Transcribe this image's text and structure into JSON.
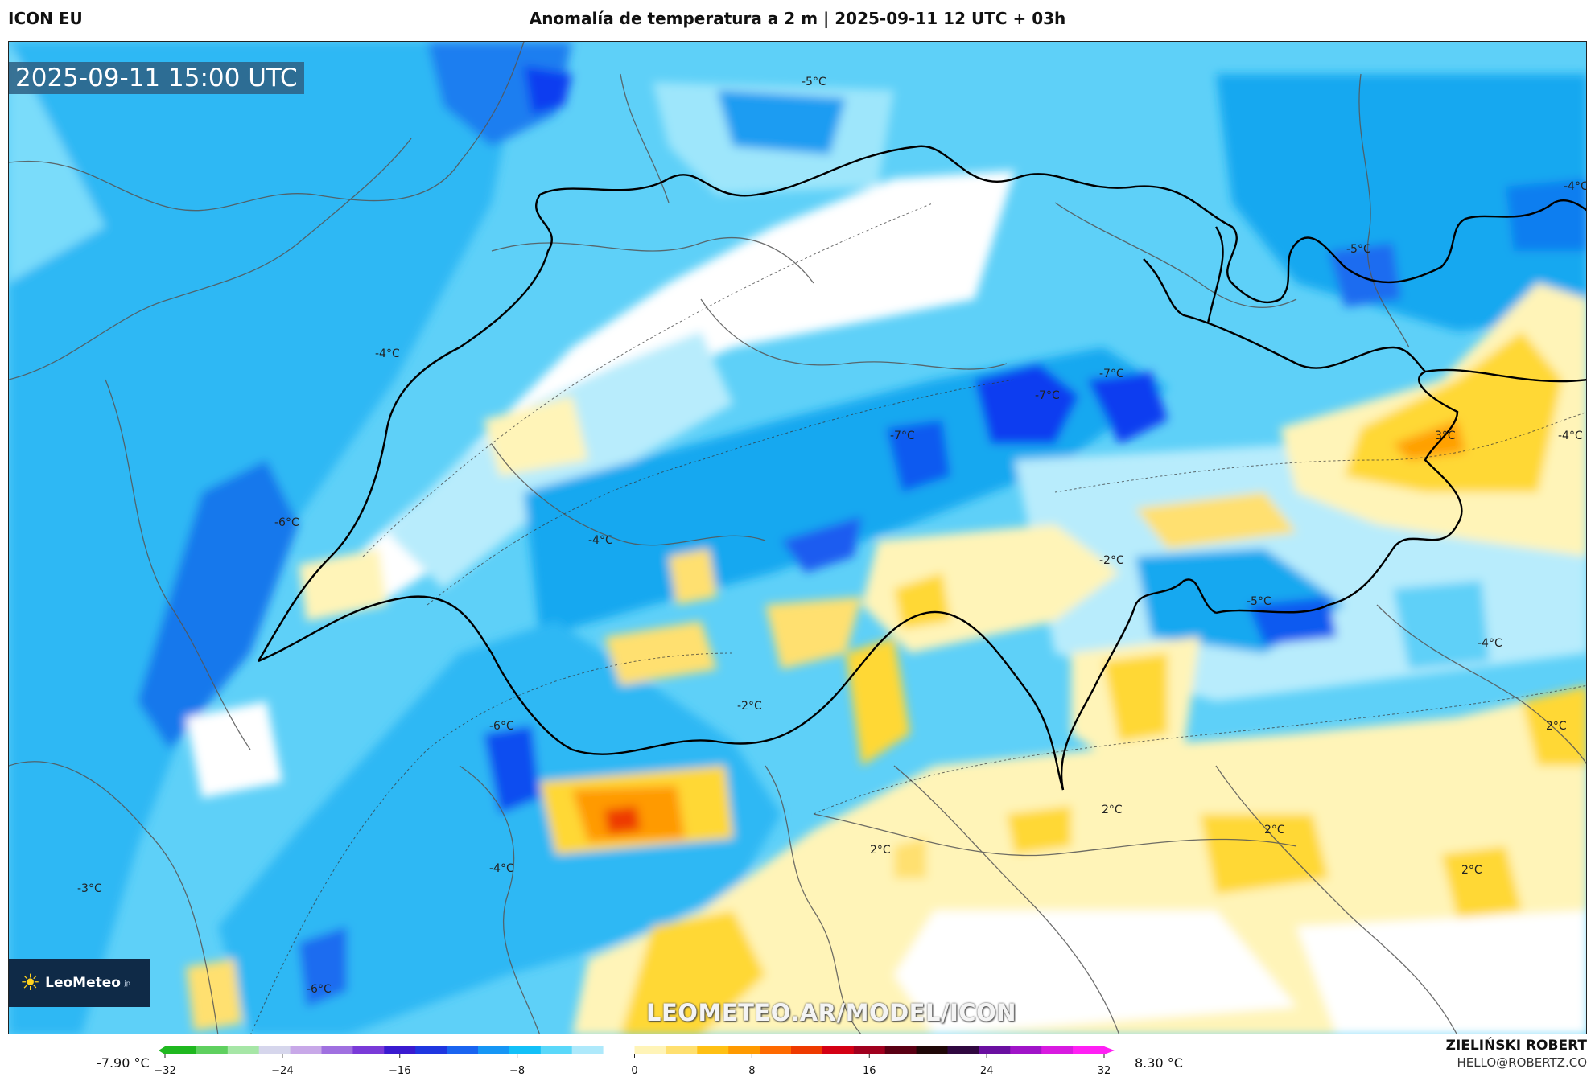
{
  "header": {
    "model": "ICON EU",
    "title": "Anomalía de temperatura a 2 m | 2025-09-11 12 UTC + 03h"
  },
  "map": {
    "valid_time": "2025-09-11 15:00 UTC",
    "watermark": "LEOMETEO.AR/MODEL/ICON",
    "logo": {
      "text": "LeoMeteo",
      "suffix": ".jp"
    },
    "contour_labels": [
      "-5°C",
      "-4°C",
      "-5°C",
      "-4°C",
      "-7°C",
      "-7°C",
      "-7°C",
      "3°C",
      "-4°C",
      "-6°C",
      "-4°C",
      "-2°C",
      "-5°C",
      "-4°C",
      "-2°C",
      "-6°C",
      "2°C",
      "-3°C",
      "-4°C",
      "2°C",
      "2°C",
      "2°C",
      "2°C",
      "-6°C"
    ]
  },
  "colorbar": {
    "min_label": "-7.90 °C",
    "max_label": "8.30 °C",
    "ticks": [
      "−32",
      "−24",
      "−16",
      "−8",
      "0",
      "8",
      "16",
      "24",
      "32"
    ],
    "colors": [
      "#1fb81f",
      "#5fd05f",
      "#a6e6a6",
      "#d6d6ec",
      "#c8a8e8",
      "#a070e0",
      "#7a3ad8",
      "#3a1ad0",
      "#1f36e0",
      "#1a64f0",
      "#1696f5",
      "#12c0f8",
      "#5ad8fa",
      "#aee9fb",
      "#ffffff",
      "#fff4b8",
      "#ffe070",
      "#ffc014",
      "#ff9a00",
      "#ff6a00",
      "#ee3a00",
      "#d40014",
      "#a0001e",
      "#5a0014",
      "#200808",
      "#300840",
      "#6a10a0",
      "#a014c8",
      "#d81ae0",
      "#ff20f4"
    ]
  },
  "author": {
    "name": "ZIELIŃSKI ROBERT",
    "email": "HELLO@ROBERTZ.CO"
  },
  "colors": {
    "anomaly_cold_deep": "#0a3cf0",
    "anomaly_cold": "#12a8f0",
    "anomaly_cool": "#5ed0f8",
    "anomaly_slight_cool": "#b8ecfc",
    "anomaly_neutral": "#ffffff",
    "anomaly_slight_warm": "#fff4b8",
    "anomaly_warm": "#ffd834",
    "anomaly_hot": "#ff5a00"
  }
}
